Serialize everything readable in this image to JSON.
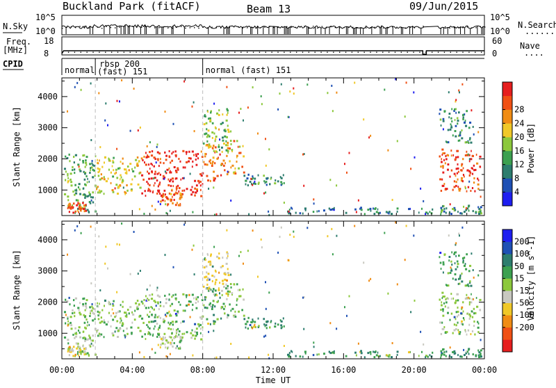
{
  "header": {
    "station": "Buckland Park (fitACF)",
    "beam": "Beam 13",
    "date": "09/Jun/2015"
  },
  "strips": {
    "nsky_label": "N.Sky",
    "nsearch_label": "N.Search",
    "nsearch_line": "......",
    "freq_label_1": "Freq.",
    "freq_label_2": "[MHz]",
    "nave_label": "Nave",
    "nave_line": "....",
    "cpid_label": "CPID",
    "noise_tick_high": "10^5",
    "noise_tick_low": "10^0",
    "freq_tick_high": "18",
    "freq_tick_low": "8",
    "nave_tick_high": "60",
    "nave_tick_low": "0"
  },
  "cpid_segments": [
    {
      "start_h": 0.0,
      "end_h": 1.9,
      "line1": "normal",
      "line2": ""
    },
    {
      "start_h": 1.9,
      "end_h": 8.0,
      "line1": "rbsp 200",
      "line2": "(fast) 151"
    },
    {
      "start_h": 8.0,
      "end_h": 24.0,
      "line1": "normal (fast) 151",
      "line2": ""
    }
  ],
  "axes": {
    "ylabel": "Slant Range [km]",
    "xlabel": "Time UT",
    "x_ticks": [
      "00:00",
      "04:00",
      "08:00",
      "12:00",
      "16:00",
      "20:00",
      "00:00"
    ],
    "y_ticks": [
      "1000",
      "2000",
      "3000",
      "4000"
    ]
  },
  "colorbars": {
    "power": {
      "label": "Power [dB]",
      "ticks": [
        "4",
        "8",
        "12",
        "16",
        "20",
        "24",
        "28"
      ],
      "colors": [
        "#1e1ef0",
        "#1e50b4",
        "#2d7d6e",
        "#3ca050",
        "#8cc83c",
        "#f0c828",
        "#f08c14",
        "#f05014",
        "#e61e1e"
      ]
    },
    "velocity": {
      "label": "Velocity [m s^-1]",
      "ticks": [
        "200",
        "100",
        "50",
        "15",
        "-15",
        "-50",
        "-100",
        "-200"
      ],
      "colors": [
        "#1e1ef0",
        "#1e50b4",
        "#2d7d6e",
        "#3ca050",
        "#8cc83c",
        "#c8c8c0",
        "#f0c828",
        "#f08c14",
        "#f05014",
        "#e61e1e"
      ]
    }
  },
  "chart_data": {
    "type": "heatmap",
    "title": "Buckland Park (fitACF)",
    "xlabel": "Time UT",
    "ylabel": "Slant Range [km]",
    "xlim_hours": [
      0,
      24
    ],
    "ylim_km": [
      180,
      4600
    ],
    "power_range_db": [
      0,
      30
    ],
    "velocity_range_ms": [
      -250,
      250
    ],
    "regions": [
      {
        "t0": 0.1,
        "t1": 1.9,
        "r0": 250,
        "r1": 2150,
        "power_db": 12,
        "velocity_ms": 0
      },
      {
        "t0": 0.3,
        "t1": 1.4,
        "r0": 250,
        "r1": 600,
        "power_db": 26,
        "velocity_ms": -30
      },
      {
        "t0": 1.9,
        "t1": 4.5,
        "r0": 850,
        "r1": 2050,
        "power_db": 18,
        "velocity_ms": 0
      },
      {
        "t0": 4.5,
        "t1": 8.0,
        "r0": 800,
        "r1": 2250,
        "power_db": 28,
        "velocity_ms": 10
      },
      {
        "t0": 5.5,
        "t1": 6.8,
        "r0": 500,
        "r1": 900,
        "power_db": 24,
        "velocity_ms": -10
      },
      {
        "t0": 8.0,
        "t1": 9.0,
        "r0": 1300,
        "r1": 2450,
        "power_db": 24,
        "velocity_ms": 40
      },
      {
        "t0": 8.0,
        "t1": 9.5,
        "r0": 2200,
        "r1": 3600,
        "power_db": 14,
        "velocity_ms": -60
      },
      {
        "t0": 9.0,
        "t1": 10.3,
        "r0": 1500,
        "r1": 2600,
        "power_db": 20,
        "velocity_ms": 0
      },
      {
        "t0": 10.3,
        "t1": 12.6,
        "r0": 1150,
        "r1": 1500,
        "power_db": 10,
        "velocity_ms": 40
      },
      {
        "t0": 12.6,
        "t1": 21.2,
        "r0": 220,
        "r1": 430,
        "power_db": 8,
        "velocity_ms": 40
      },
      {
        "t0": 21.4,
        "t1": 23.8,
        "r0": 950,
        "r1": 2300,
        "power_db": 26,
        "velocity_ms": 0
      },
      {
        "t0": 21.4,
        "t1": 23.2,
        "r0": 2500,
        "r1": 3600,
        "power_db": 10,
        "velocity_ms": 40
      },
      {
        "t0": 21.4,
        "t1": 23.8,
        "r0": 220,
        "r1": 500,
        "power_db": 10,
        "velocity_ms": 60
      }
    ],
    "mode_changes_hours": [
      1.9,
      8.0
    ],
    "data_gap_hours": [
      [
        20.5,
        21.35
      ]
    ]
  }
}
